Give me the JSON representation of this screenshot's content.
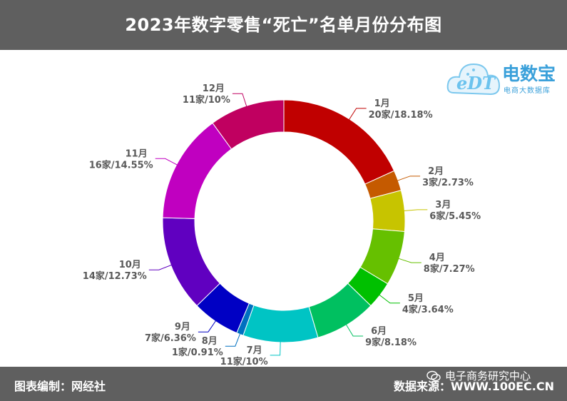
{
  "header": {
    "title": "2023年数字零售“死亡”名单月份分布图"
  },
  "footer": {
    "left": "图表编制：网经社",
    "right": "数据来源：WWW.100EC.CN",
    "watermark": "电子商务研究中心"
  },
  "logo": {
    "main": "电数宝",
    "sub": "电商大数据库",
    "mark": "eDT"
  },
  "chart_data": {
    "type": "pie",
    "donut": true,
    "title": "2023年数字零售“死亡”名单月份分布图",
    "slices": [
      {
        "month": "1月",
        "count_label": "20家/18.18%",
        "value": 20,
        "percent": 18.18,
        "color": "#c00000"
      },
      {
        "month": "2月",
        "count_label": "3家/2.73%",
        "value": 3,
        "percent": 2.73,
        "color": "#c55a00"
      },
      {
        "month": "3月",
        "count_label": "6家/5.45%",
        "value": 6,
        "percent": 5.45,
        "color": "#c7c400"
      },
      {
        "month": "4月",
        "count_label": "8家/7.27%",
        "value": 8,
        "percent": 7.27,
        "color": "#66c000"
      },
      {
        "month": "5月",
        "count_label": "4家/3.64%",
        "value": 4,
        "percent": 3.64,
        "color": "#00c000"
      },
      {
        "month": "6月",
        "count_label": "9家/8.18%",
        "value": 9,
        "percent": 8.18,
        "color": "#00c060"
      },
      {
        "month": "7月",
        "count_label": "11家/10%",
        "value": 11,
        "percent": 10,
        "color": "#00c4c4"
      },
      {
        "month": "8月",
        "count_label": "1家/0.91%",
        "value": 1,
        "percent": 0.91,
        "color": "#0070c0"
      },
      {
        "month": "9月",
        "count_label": "7家/6.36%",
        "value": 7,
        "percent": 6.36,
        "color": "#0000c4"
      },
      {
        "month": "10月",
        "count_label": "14家/12.73%",
        "value": 14,
        "percent": 12.73,
        "color": "#6000c0"
      },
      {
        "month": "11月",
        "count_label": "16家/14.55%",
        "value": 16,
        "percent": 14.55,
        "color": "#c000c0"
      },
      {
        "month": "12月",
        "count_label": "11家/10%",
        "value": 11,
        "percent": 10,
        "color": "#c00060"
      }
    ]
  }
}
